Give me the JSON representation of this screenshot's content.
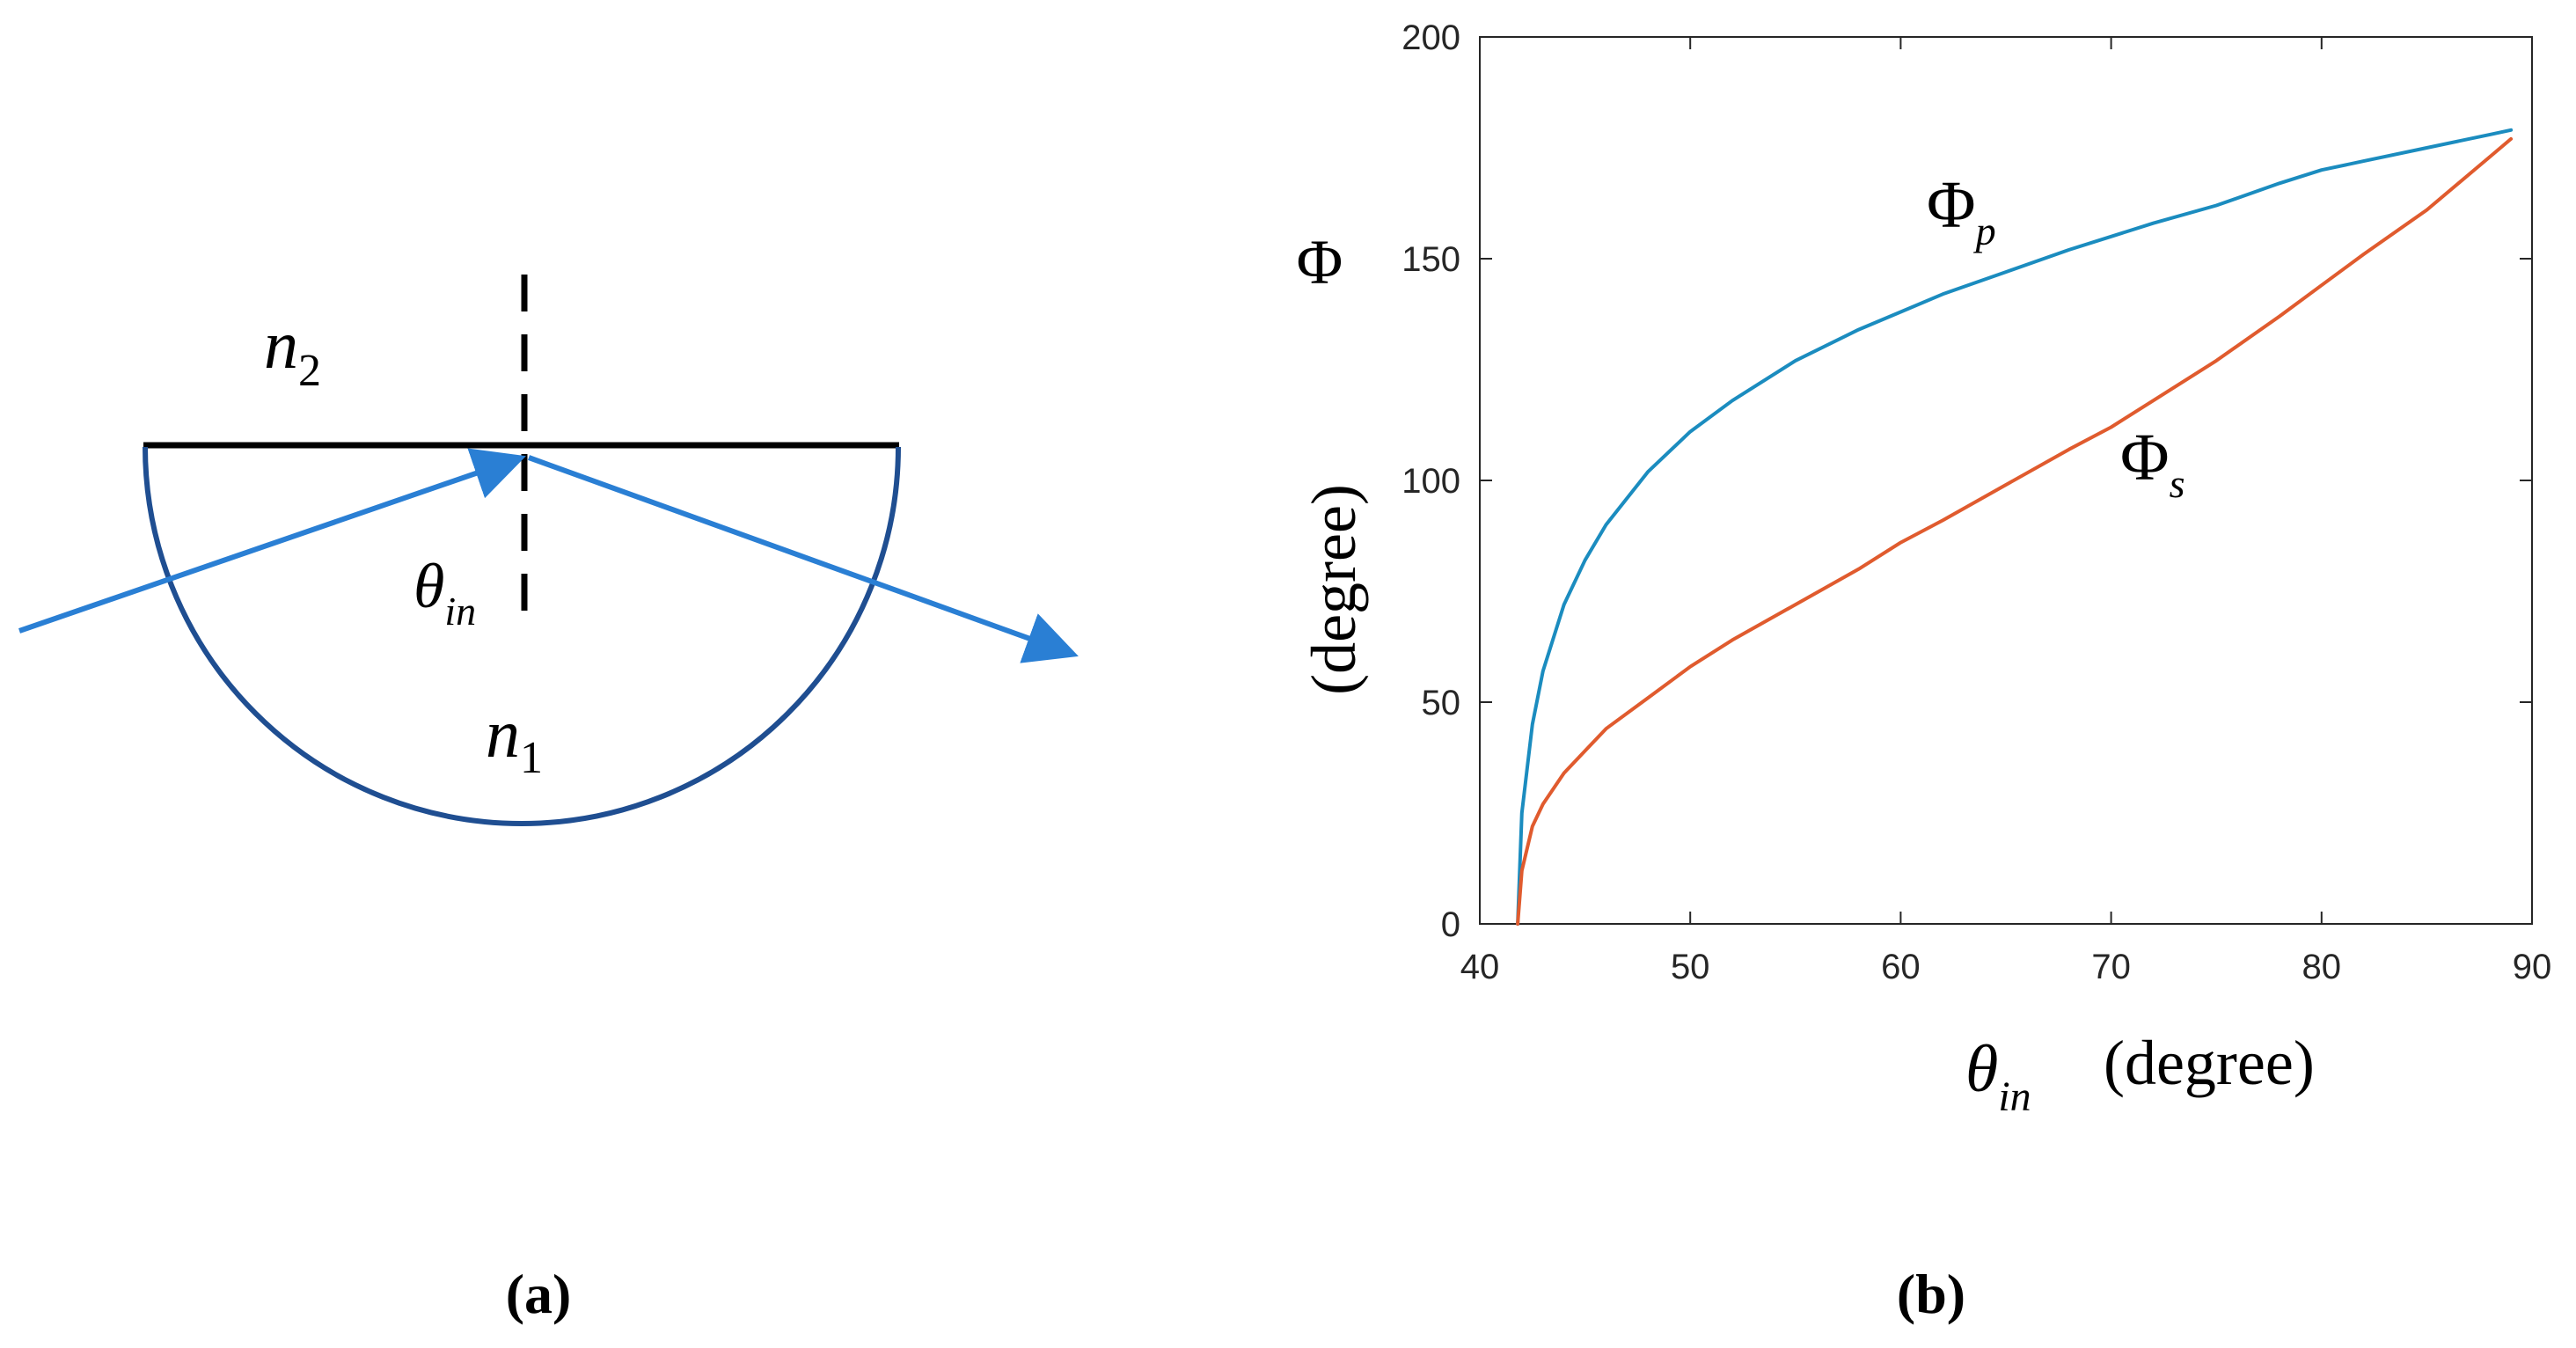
{
  "colors": {
    "ray": "#2a7fd4",
    "prism": "#1f4e91",
    "phi_p": "#1b8cbf",
    "phi_s": "#e05b2e",
    "axis": "#262626",
    "interface": "#000000"
  },
  "panel_a": {
    "caption": "(a)",
    "n2_base": "n",
    "n2_sub": "2",
    "n1_base": "n",
    "n1_sub": "1",
    "theta_symbol": "θ",
    "theta_sub": "in"
  },
  "panel_b": {
    "caption": "(b)",
    "ylabel_symbol": "Φ",
    "ylabel_unit": "(degree)",
    "xlabel_symbol": "θ",
    "xlabel_sub": "in",
    "xlabel_unit": "(degree)",
    "series_label_p_base": "Φ",
    "series_label_p_sub": "p",
    "series_label_s_base": "Φ",
    "series_label_s_sub": "s"
  },
  "chart_data": {
    "type": "line",
    "xlim": [
      40,
      90
    ],
    "ylim": [
      0,
      200
    ],
    "xticks": [
      40,
      50,
      60,
      70,
      80,
      90
    ],
    "yticks": [
      0,
      50,
      100,
      150,
      200
    ],
    "grid": false,
    "series": [
      {
        "name": "Φp",
        "x": [
          41.8,
          42.0,
          42.5,
          43,
          44,
          45,
          46,
          48,
          50,
          52,
          55,
          58,
          60,
          62,
          65,
          68,
          70,
          72,
          75,
          78,
          80,
          82,
          85,
          88,
          89
        ],
        "y": [
          0,
          25,
          45,
          57,
          72,
          82,
          90,
          102,
          111,
          118,
          127,
          134,
          138,
          142,
          147,
          152,
          155,
          158,
          162,
          167,
          170,
          172,
          175,
          178,
          179
        ]
      },
      {
        "name": "Φs",
        "x": [
          41.8,
          42.0,
          42.5,
          43,
          44,
          45,
          46,
          48,
          50,
          52,
          55,
          58,
          60,
          62,
          65,
          68,
          70,
          72,
          75,
          78,
          80,
          82,
          85,
          88,
          89
        ],
        "y": [
          0,
          12,
          22,
          27,
          34,
          39,
          44,
          51,
          58,
          64,
          72,
          80,
          86,
          91,
          99,
          107,
          112,
          118,
          127,
          137,
          144,
          151,
          161,
          173,
          177
        ]
      }
    ]
  }
}
